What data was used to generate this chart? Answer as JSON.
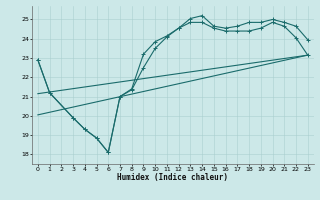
{
  "xlabel": "Humidex (Indice chaleur)",
  "xlim": [
    -0.5,
    23.5
  ],
  "ylim": [
    17.5,
    25.7
  ],
  "xticks": [
    0,
    1,
    2,
    3,
    4,
    5,
    6,
    7,
    8,
    9,
    10,
    11,
    12,
    13,
    14,
    15,
    16,
    17,
    18,
    19,
    20,
    21,
    22,
    23
  ],
  "yticks": [
    18,
    19,
    20,
    21,
    22,
    23,
    24,
    25
  ],
  "bg_color": "#cce8e8",
  "line_color": "#1a6b6b",
  "line1_x": [
    0,
    1,
    3,
    4,
    5,
    6,
    7,
    8,
    9,
    10,
    11,
    12,
    13,
    14,
    15,
    16,
    17,
    18,
    19,
    20,
    21,
    22,
    23
  ],
  "line1_y": [
    22.9,
    21.2,
    19.9,
    19.3,
    18.85,
    18.1,
    21.0,
    21.4,
    23.2,
    23.85,
    24.15,
    24.55,
    25.05,
    25.2,
    24.65,
    24.55,
    24.65,
    24.85,
    24.85,
    25.0,
    24.85,
    24.65,
    23.95
  ],
  "line2_x": [
    0,
    1,
    3,
    4,
    5,
    6,
    7,
    8,
    9,
    10,
    11,
    12,
    13,
    14,
    15,
    16,
    17,
    18,
    19,
    20,
    21,
    22,
    23
  ],
  "line2_y": [
    22.9,
    21.2,
    19.9,
    19.3,
    18.85,
    18.1,
    21.0,
    21.35,
    22.5,
    23.5,
    24.1,
    24.55,
    24.85,
    24.85,
    24.55,
    24.4,
    24.4,
    24.4,
    24.55,
    24.85,
    24.65,
    24.05,
    23.15
  ],
  "line3_x": [
    0,
    23
  ],
  "line3_y": [
    21.15,
    23.15
  ],
  "line4_x": [
    0,
    23
  ],
  "line4_y": [
    20.05,
    23.15
  ]
}
